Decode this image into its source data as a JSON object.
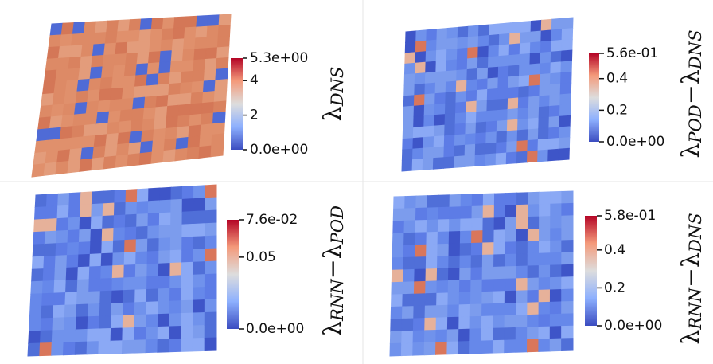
{
  "chart_data": [
    {
      "type": "mesh",
      "label": [
        {
          "text": "λ",
          "sub": "DNS"
        }
      ],
      "ylim": [
        0,
        5.3
      ],
      "yticks": [
        {
          "value": 0,
          "label": "0.0e+00"
        },
        2,
        4,
        {
          "value": 5.3,
          "label": "5.3e+00"
        }
      ]
    },
    {
      "type": "mesh",
      "label": [
        {
          "text": "λ",
          "sub": "POD"
        },
        {
          "text": "−λ",
          "sub": "DNS"
        }
      ],
      "ylim": [
        0,
        0.56
      ],
      "yticks": [
        {
          "value": 0,
          "label": "0.0e+00"
        },
        0.2,
        0.4,
        {
          "value": 0.56,
          "label": "5.6e-01"
        }
      ]
    },
    {
      "type": "mesh",
      "label": [
        {
          "text": "λ",
          "sub": "RNN"
        },
        {
          "text": "−λ",
          "sub": "POD"
        }
      ],
      "ylim": [
        0,
        0.076
      ],
      "yticks": [
        {
          "value": 0,
          "label": "0.0e+00"
        },
        0.05,
        {
          "value": 0.076,
          "label": "7.6e-02"
        }
      ]
    },
    {
      "type": "mesh",
      "label": [
        {
          "text": "λ",
          "sub": "RNN"
        },
        {
          "text": "−λ",
          "sub": "DNS"
        }
      ],
      "ylim": [
        0,
        0.58
      ],
      "yticks": [
        {
          "value": 0,
          "label": "0.0e+00"
        },
        0.2,
        0.4,
        {
          "value": 0.58,
          "label": "5.8e-01"
        }
      ]
    }
  ]
}
